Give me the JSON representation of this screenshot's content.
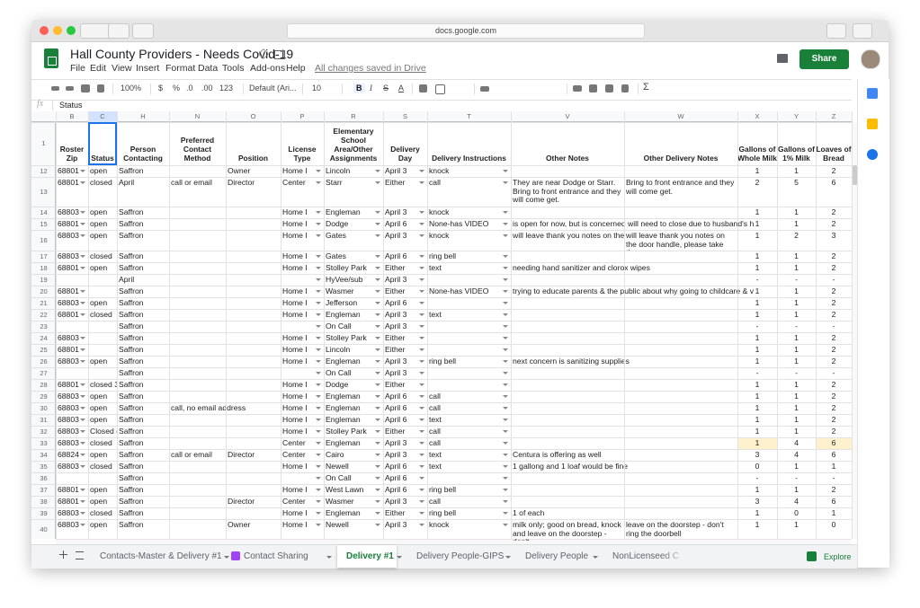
{
  "browser": {
    "url": "docs.google.com"
  },
  "header": {
    "title": "Hall County Providers - Needs Covid-19",
    "menu": [
      "File",
      "Edit",
      "View",
      "Insert",
      "Format",
      "Data",
      "Tools",
      "Add-ons",
      "Help"
    ],
    "save_status": "All changes saved in Drive",
    "share": "Share"
  },
  "toolbar": [
    "100%",
    "$",
    "%",
    ".0",
    ".00",
    "123",
    "Default (Ari...",
    "10",
    "B",
    "I",
    "S",
    "A",
    "Σ"
  ],
  "formula_bar": {
    "label": "fx",
    "content": "Status"
  },
  "sheet": {
    "column_letters": [
      "B",
      "C",
      "H",
      "N",
      "O",
      "P",
      "R",
      "S",
      "T",
      "V",
      "W",
      "X",
      "Y",
      "Z"
    ],
    "header_row": "1",
    "headers": [
      "Roster Zip",
      "Status",
      "Person Contacting",
      "Preferred Contact Method",
      "Position",
      "License Type",
      "Elementary School Area/Other Assignments",
      "Delivery Day",
      "Delivery Instructions",
      "Other Notes",
      "Other Delivery Notes",
      "Gallons of Whole Milk",
      "Gallons of 1% Milk",
      "Loaves of Bread"
    ],
    "rows": [
      {
        "row": "12",
        "cells": [
          "68801",
          "open",
          "Saffron",
          null,
          "Owner",
          "Home I",
          "Lincoln",
          "April 3",
          "knock",
          null,
          null,
          "1",
          "1",
          "2"
        ]
      },
      {
        "row": "13",
        "cells": [
          "68801",
          "closed",
          "April",
          "call or email",
          "Director",
          "Center",
          "Starr",
          "Either",
          "call",
          "They are near Dodge or Starr. Bring to front entrance and they will come get.",
          "Bring to front entrance and they will come get.",
          "2",
          "5",
          "6"
        ]
      },
      {
        "row": "14",
        "cells": [
          "68803",
          "open",
          "Saffron",
          null,
          null,
          "Home I",
          "Engleman",
          "April 3",
          "knock",
          null,
          null,
          "1",
          "1",
          "2"
        ]
      },
      {
        "row": "15",
        "cells": [
          "68801",
          "open",
          "Saffron",
          null,
          null,
          "Home I",
          "Dodge",
          "April 6",
          "None-has VIDEO",
          "is open for now, but is concerned will need to close due to husband's h",
          null,
          "1",
          "1",
          "2"
        ]
      },
      {
        "row": "16",
        "cells": [
          "68803",
          "open",
          "Saffron",
          null,
          null,
          "Home I",
          "Gates",
          "April 3",
          "knock",
          "will leave thank you notes on the d",
          "will leave thank you notes on the door handle, please take them",
          "1",
          "2",
          "3"
        ]
      },
      {
        "row": "17",
        "cells": [
          "68803",
          "closed",
          "Saffron",
          null,
          null,
          "Home I",
          "Gates",
          "April 6",
          "ring bell",
          null,
          null,
          "1",
          "1",
          "2"
        ]
      },
      {
        "row": "18",
        "cells": [
          "68801",
          "open",
          "Saffron",
          null,
          null,
          "Home I",
          "Stolley Park",
          "Either",
          "text",
          "needing hand sanitizer and clorox wipes",
          null,
          "1",
          "1",
          "2"
        ]
      },
      {
        "row": "19",
        "cells": [
          null,
          null,
          "April",
          null,
          null,
          null,
          "HyVee/sub",
          "April 3",
          null,
          null,
          null,
          "-",
          "-",
          "-"
        ]
      },
      {
        "row": "20",
        "cells": [
          "68801",
          null,
          "Saffron",
          null,
          null,
          "Home I",
          "Wasmer",
          "Either",
          "None-has VIDEO",
          "trying to educate parents & the public about why going to childcare & v",
          null,
          "1",
          "1",
          "2"
        ]
      },
      {
        "row": "21",
        "cells": [
          "68803",
          "open",
          "Saffron",
          null,
          null,
          "Home I",
          "Jefferson",
          "April 6",
          null,
          null,
          null,
          "1",
          "1",
          "2"
        ]
      },
      {
        "row": "22",
        "cells": [
          "68801",
          "closed",
          "Saffron",
          null,
          null,
          "Home I",
          "Engleman",
          "April 3",
          "text",
          null,
          null,
          "1",
          "1",
          "2"
        ]
      },
      {
        "row": "23",
        "cells": [
          null,
          null,
          "Saffron",
          null,
          null,
          null,
          "On Call",
          "April 3",
          null,
          null,
          null,
          "-",
          "-",
          "-"
        ]
      },
      {
        "row": "24",
        "cells": [
          "68803",
          null,
          "Saffron",
          null,
          null,
          "Home I",
          "Stolley Park",
          "Either",
          null,
          null,
          null,
          "1",
          "1",
          "2"
        ]
      },
      {
        "row": "25",
        "cells": [
          "68801",
          null,
          "Saffron",
          null,
          null,
          "Home I",
          "Lincoln",
          "Either",
          null,
          null,
          null,
          "1",
          "1",
          "2"
        ]
      },
      {
        "row": "26",
        "cells": [
          "68803",
          "open",
          "Saffron",
          null,
          null,
          "Home I",
          "Engleman",
          "April 3",
          "ring bell",
          "next concern is sanitizing supplies",
          null,
          "1",
          "1",
          "2"
        ]
      },
      {
        "row": "27",
        "cells": [
          null,
          null,
          "Saffron",
          null,
          null,
          null,
          "On Call",
          "April 3",
          null,
          null,
          null,
          "-",
          "-",
          "-"
        ]
      },
      {
        "row": "28",
        "cells": [
          "68801",
          "closed 3",
          "Saffron",
          null,
          null,
          "Home I",
          "Dodge",
          "Either",
          null,
          null,
          null,
          "1",
          "1",
          "2"
        ]
      },
      {
        "row": "29",
        "cells": [
          "68803",
          "open",
          "Saffron",
          null,
          null,
          "Home I",
          "Engleman",
          "April 6",
          "call",
          null,
          null,
          "1",
          "1",
          "2"
        ]
      },
      {
        "row": "30",
        "cells": [
          "68803",
          "open",
          "Saffron",
          "call, no email address",
          null,
          "Home I",
          "Engleman",
          "April 6",
          "call",
          null,
          null,
          "1",
          "1",
          "2"
        ]
      },
      {
        "row": "31",
        "cells": [
          "68803",
          "open",
          "Saffron",
          null,
          null,
          "Home I",
          "Engleman",
          "April 6",
          "text",
          null,
          null,
          "1",
          "1",
          "2"
        ]
      },
      {
        "row": "32",
        "cells": [
          "68803",
          "Closed (",
          "Saffron",
          null,
          null,
          "Home I",
          "Stolley Park",
          "Either",
          "call",
          null,
          null,
          "1",
          "1",
          "2"
        ]
      },
      {
        "row": "33",
        "cells": [
          "68803",
          "closed",
          "Saffron",
          null,
          null,
          "Center",
          "Engleman",
          "April 3",
          "call",
          null,
          null,
          "1",
          "4",
          "6"
        ]
      },
      {
        "row": "34",
        "cells": [
          "68824",
          "open",
          "Saffron",
          "call or email",
          "Director",
          "Center",
          "Cairo",
          "April 3",
          "text",
          "Centura is offering as well",
          null,
          "3",
          "4",
          "6"
        ]
      },
      {
        "row": "35",
        "cells": [
          "68803",
          "closed",
          "Saffron",
          null,
          null,
          "Home I",
          "Newell",
          "April 6",
          "text",
          "1 gallong and 1 loaf would be fine",
          null,
          "0",
          "1",
          "1"
        ]
      },
      {
        "row": "36",
        "cells": [
          null,
          null,
          "Saffron",
          null,
          null,
          null,
          "On Call",
          "April 6",
          null,
          null,
          null,
          "-",
          "-",
          "-"
        ]
      },
      {
        "row": "37",
        "cells": [
          "68801",
          "open",
          "Saffron",
          null,
          null,
          "Home I",
          "West Lawn",
          "April 6",
          "ring bell",
          null,
          null,
          "1",
          "1",
          "2"
        ]
      },
      {
        "row": "38",
        "cells": [
          "68801",
          "open",
          "Saffron",
          null,
          "Director",
          "Center",
          "Wasmer",
          "April 3",
          "call",
          null,
          null,
          "3",
          "4",
          "6"
        ]
      },
      {
        "row": "39",
        "cells": [
          "68803",
          "closed",
          "Saffron",
          null,
          null,
          "Home I",
          "Engleman",
          "Either",
          "ring bell",
          "1 of each",
          null,
          "1",
          "0",
          "1"
        ]
      },
      {
        "row": "40",
        "cells": [
          "68803",
          "open",
          "Saffron",
          null,
          "Owner",
          "Home I",
          "Newell",
          "April 3",
          "knock",
          "milk only; good on bread, knock and leave on the doorstep - don't",
          "leave on the doorstep - don't ring the doorbell",
          "1",
          "1",
          "0"
        ]
      }
    ]
  },
  "tabs": [
    {
      "label": "Contacts-Master & Delivery #1"
    },
    {
      "label": "Contact Sharing"
    },
    {
      "label": "Delivery #1",
      "active": true
    },
    {
      "label": "Delivery People-GIPS"
    },
    {
      "label": "Delivery People"
    },
    {
      "label": "NonLicenseed C"
    }
  ],
  "explore": "Explore"
}
